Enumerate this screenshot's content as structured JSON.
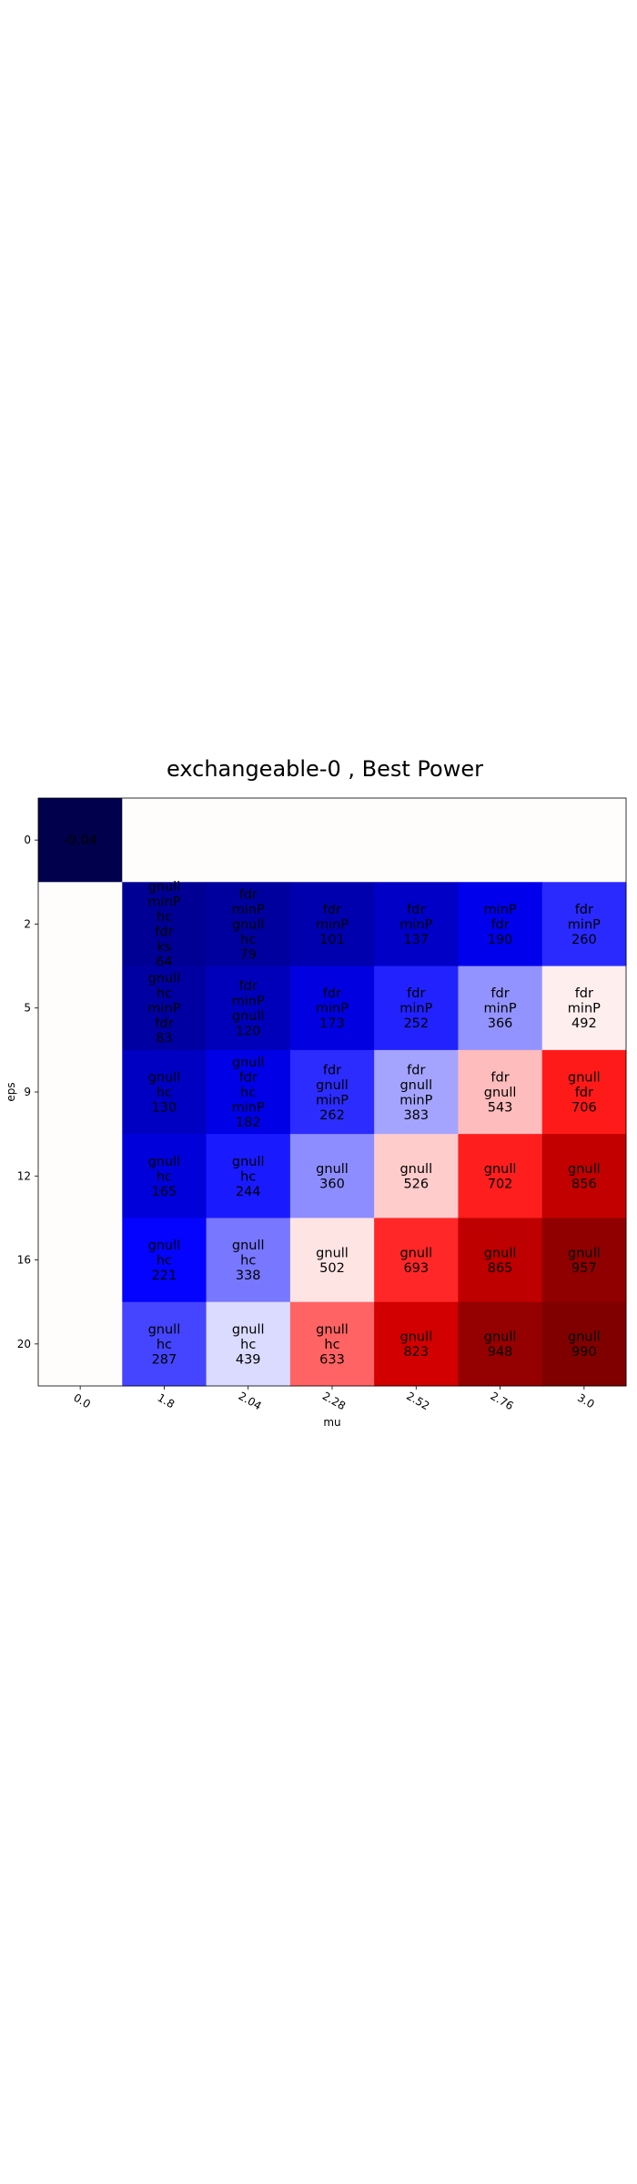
{
  "chart_data": {
    "type": "heatmap",
    "title": "exchangeable-0 , Best Power",
    "xlabel": "mu",
    "ylabel": "eps",
    "x_categories": [
      "0.0",
      "1.8",
      "2.04",
      "2.28",
      "2.52",
      "2.76",
      "3.0"
    ],
    "y_categories": [
      "0",
      "2",
      "5",
      "9",
      "12",
      "16",
      "20"
    ],
    "colormap": "seismic",
    "colors": {
      "low": "#00004c",
      "mid": "#ffffff",
      "high": "#800000"
    },
    "color_range": [
      -0.04,
      0.99
    ],
    "cells": [
      [
        {
          "lines": [
            "-0.04"
          ],
          "value": -0.04
        },
        {
          "lines": [],
          "value": null
        },
        {
          "lines": [],
          "value": null
        },
        {
          "lines": [],
          "value": null
        },
        {
          "lines": [],
          "value": null
        },
        {
          "lines": [],
          "value": null
        },
        {
          "lines": [],
          "value": null
        }
      ],
      [
        {
          "lines": [],
          "value": null
        },
        {
          "lines": [
            "gnull",
            "minP",
            "hc",
            "fdr",
            "ks",
            "64"
          ],
          "value": 0.064
        },
        {
          "lines": [
            "fdr",
            "minP",
            "gnull",
            "hc",
            "79"
          ],
          "value": 0.079
        },
        {
          "lines": [
            "fdr",
            "minP",
            "101"
          ],
          "value": 0.101
        },
        {
          "lines": [
            "fdr",
            "minP",
            "137"
          ],
          "value": 0.137
        },
        {
          "lines": [
            "minP",
            "fdr",
            "190"
          ],
          "value": 0.19
        },
        {
          "lines": [
            "fdr",
            "minP",
            "260"
          ],
          "value": 0.26
        }
      ],
      [
        {
          "lines": [],
          "value": null
        },
        {
          "lines": [
            "gnull",
            "hc",
            "minP",
            "fdr",
            "83"
          ],
          "value": 0.083
        },
        {
          "lines": [
            "fdr",
            "minP",
            "gnull",
            "120"
          ],
          "value": 0.12
        },
        {
          "lines": [
            "fdr",
            "minP",
            "173"
          ],
          "value": 0.173
        },
        {
          "lines": [
            "fdr",
            "minP",
            "252"
          ],
          "value": 0.252
        },
        {
          "lines": [
            "fdr",
            "minP",
            "366"
          ],
          "value": 0.366
        },
        {
          "lines": [
            "fdr",
            "minP",
            "492"
          ],
          "value": 0.492
        }
      ],
      [
        {
          "lines": [],
          "value": null
        },
        {
          "lines": [
            "gnull",
            "hc",
            "130"
          ],
          "value": 0.13
        },
        {
          "lines": [
            "gnull",
            "fdr",
            "hc",
            "minP",
            "182"
          ],
          "value": 0.182
        },
        {
          "lines": [
            "fdr",
            "gnull",
            "minP",
            "262"
          ],
          "value": 0.262
        },
        {
          "lines": [
            "fdr",
            "gnull",
            "minP",
            "383"
          ],
          "value": 0.383
        },
        {
          "lines": [
            "fdr",
            "gnull",
            "543"
          ],
          "value": 0.543
        },
        {
          "lines": [
            "gnull",
            "fdr",
            "706"
          ],
          "value": 0.706
        }
      ],
      [
        {
          "lines": [],
          "value": null
        },
        {
          "lines": [
            "gnull",
            "hc",
            "165"
          ],
          "value": 0.165
        },
        {
          "lines": [
            "gnull",
            "hc",
            "244"
          ],
          "value": 0.244
        },
        {
          "lines": [
            "gnull",
            "360"
          ],
          "value": 0.36
        },
        {
          "lines": [
            "gnull",
            "526"
          ],
          "value": 0.526
        },
        {
          "lines": [
            "gnull",
            "702"
          ],
          "value": 0.702
        },
        {
          "lines": [
            "gnull",
            "856"
          ],
          "value": 0.856
        }
      ],
      [
        {
          "lines": [],
          "value": null
        },
        {
          "lines": [
            "gnull",
            "hc",
            "221"
          ],
          "value": 0.221
        },
        {
          "lines": [
            "gnull",
            "hc",
            "338"
          ],
          "value": 0.338
        },
        {
          "lines": [
            "gnull",
            "502"
          ],
          "value": 0.502
        },
        {
          "lines": [
            "gnull",
            "693"
          ],
          "value": 0.693
        },
        {
          "lines": [
            "gnull",
            "865"
          ],
          "value": 0.865
        },
        {
          "lines": [
            "gnull",
            "957"
          ],
          "value": 0.957
        }
      ],
      [
        {
          "lines": [],
          "value": null
        },
        {
          "lines": [
            "gnull",
            "hc",
            "287"
          ],
          "value": 0.287
        },
        {
          "lines": [
            "gnull",
            "hc",
            "439"
          ],
          "value": 0.439
        },
        {
          "lines": [
            "gnull",
            "hc",
            "633"
          ],
          "value": 0.633
        },
        {
          "lines": [
            "gnull",
            "823"
          ],
          "value": 0.823
        },
        {
          "lines": [
            "gnull",
            "948"
          ],
          "value": 0.948
        },
        {
          "lines": [
            "gnull",
            "990"
          ],
          "value": 0.99
        }
      ]
    ]
  }
}
